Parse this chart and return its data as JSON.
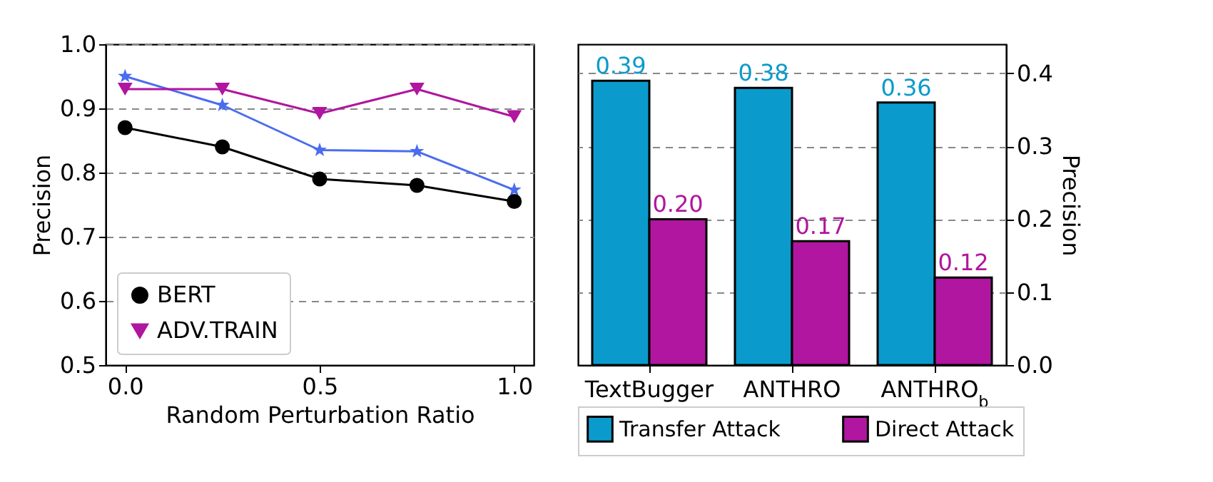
{
  "chart_data": [
    {
      "type": "line",
      "xlabel": "Random Perturbation Ratio",
      "ylabel": "Precision",
      "x": [
        0,
        0.25,
        0.5,
        0.75,
        1.0
      ],
      "xlim": [
        -0.05,
        1.05
      ],
      "xticks": [
        {
          "value": 0,
          "label": "0.0"
        },
        0.5,
        {
          "value": 1,
          "label": "1.0"
        }
      ],
      "ylim": [
        0.5,
        1.0
      ],
      "yticks": [
        0.5,
        0.6,
        0.7,
        0.8,
        0.9,
        {
          "value": 1,
          "label": "1.0"
        }
      ],
      "grid": "y",
      "legend": "bottom left",
      "series": [
        {
          "color": "#4a6cf0",
          "marker": "star",
          "values": [
            0.95,
            0.905,
            0.835,
            0.833,
            0.773
          ]
        },
        {
          "name": "BERT",
          "color": "#000000",
          "marker": "circle",
          "values": [
            0.87,
            0.84,
            0.79,
            0.78,
            0.755
          ]
        },
        {
          "name": "ADV.TRAIN",
          "color": "#b0169f",
          "marker": "triangle-down",
          "values": [
            0.93,
            0.93,
            0.892,
            0.93,
            0.887
          ]
        }
      ]
    },
    {
      "type": "bar",
      "categories": [
        "TextBugger",
        "ANTHRO",
        "ANTHRO$_{b}$"
      ],
      "y2label": "Precision",
      "y2lim": [
        0,
        0.44
      ],
      "y2ticks": [
        {
          "value": 0,
          "label": "0.0"
        },
        0.1,
        0.2,
        0.3,
        0.4
      ],
      "grid": "y",
      "legend": "bottom",
      "series": [
        {
          "name": "Transfer Attack",
          "color": "#0a9bcc",
          "axis": "y2",
          "values": [
            0.39,
            0.38,
            0.36
          ],
          "value_labels": [
            "0.39",
            "0.38",
            "0.36"
          ]
        },
        {
          "name": "Direct Attack",
          "color": "#b0169f",
          "axis": "y2",
          "values": [
            0.2,
            0.17,
            0.12
          ],
          "value_labels": [
            "0.20",
            "0.17",
            "0.12"
          ]
        }
      ]
    }
  ]
}
